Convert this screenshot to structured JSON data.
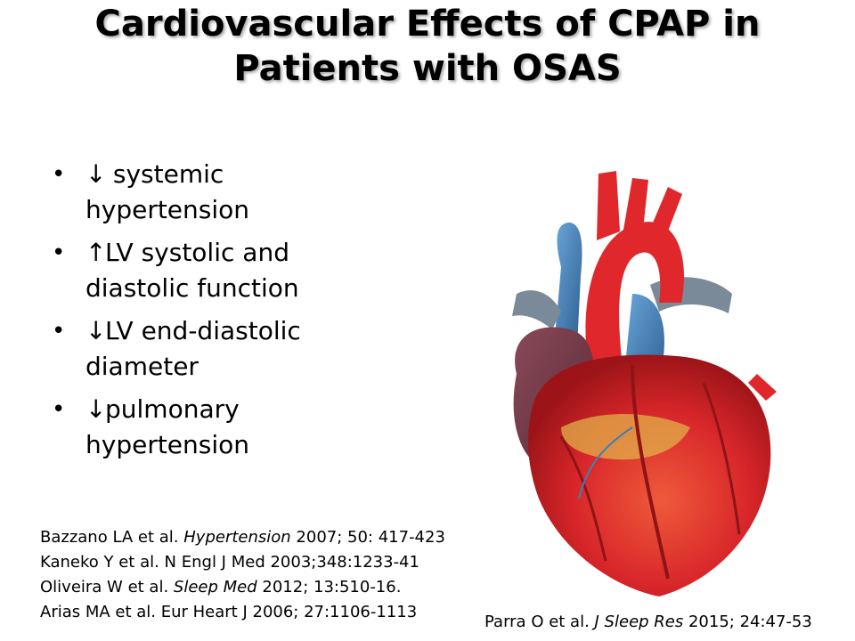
{
  "slide": {
    "title_line1": "Cardiovascular Effects of CPAP in",
    "title_line2": "Patients with OSAS",
    "bullets": [
      {
        "arrow": "↓",
        "line1": " systemic",
        "line2": "hypertension"
      },
      {
        "arrow": "↑",
        "line1": "LV systolic and",
        "line2": "diastolic function"
      },
      {
        "arrow": "↓",
        "line1": "LV end-diastolic",
        "line2": "diameter"
      },
      {
        "arrow": "↓",
        "line1": "pulmonary",
        "line2": "hypertension"
      }
    ],
    "references": [
      {
        "pre": "Bazzano LA et al. ",
        "journal": "Hypertension",
        "post": " 2007; 50: 417-423"
      },
      {
        "pre": "Kaneko Y et al. N Engl J Med 2003;348:1233-41",
        "journal": "",
        "post": ""
      },
      {
        "pre": "Oliveira W et al.  ",
        "journal": "Sleep Med",
        "post": " 2012; 13:510-16."
      },
      {
        "pre": "Arias MA et al.  Eur Heart J 2006; 27:1106-1113",
        "journal": "",
        "post": ""
      }
    ],
    "image_reference": {
      "pre": "Parra O et al.  ",
      "journal": "J Sleep Res",
      "post": " 2015; 24:47-53"
    },
    "image_icon": "heart-illustration",
    "colors": {
      "heart_red": "#d8262a",
      "vein_blue": "#3f7fb8",
      "fat_yellow": "#e2b04a"
    }
  }
}
